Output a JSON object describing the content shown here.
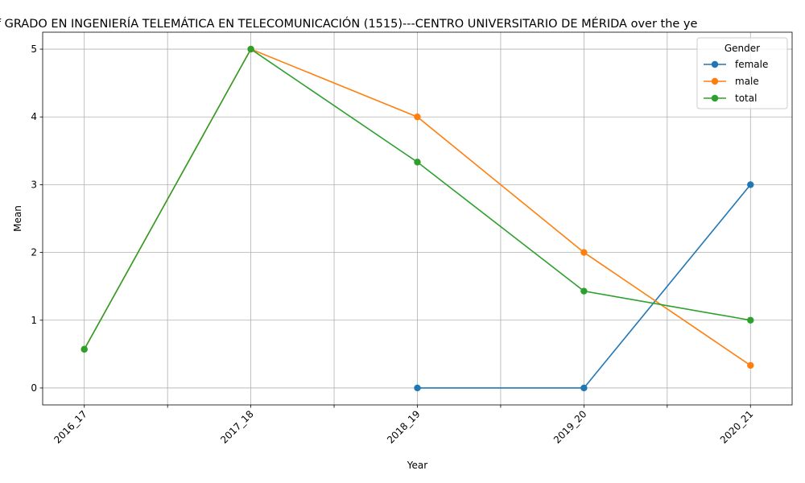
{
  "chart_data": {
    "type": "line",
    "title": "of GRADO EN INGENIERÍA TELEMÁTICA EN TELECOMUNICACIÓN (1515)---CENTRO UNIVERSITARIO DE MÉRIDA over the ye",
    "xlabel": "Year",
    "ylabel": "Mean",
    "x": [
      "2016_17",
      "2017_18",
      "2018_19",
      "2019_20",
      "2020_21"
    ],
    "yticks": [
      0,
      1,
      2,
      3,
      4,
      5
    ],
    "ylim": [
      -0.25,
      5.25
    ],
    "grid": true,
    "legend": {
      "title": "Gender",
      "placement": "top-right"
    },
    "series": [
      {
        "name": "female",
        "color": "#1f77b4",
        "values": [
          null,
          null,
          0,
          0,
          3
        ]
      },
      {
        "name": "male",
        "color": "#ff7f0e",
        "values": [
          0.571,
          5,
          4,
          2,
          0.333
        ]
      },
      {
        "name": "total",
        "color": "#2ca02c",
        "values": [
          0.571,
          5,
          3.333,
          1.429,
          1
        ]
      }
    ]
  }
}
